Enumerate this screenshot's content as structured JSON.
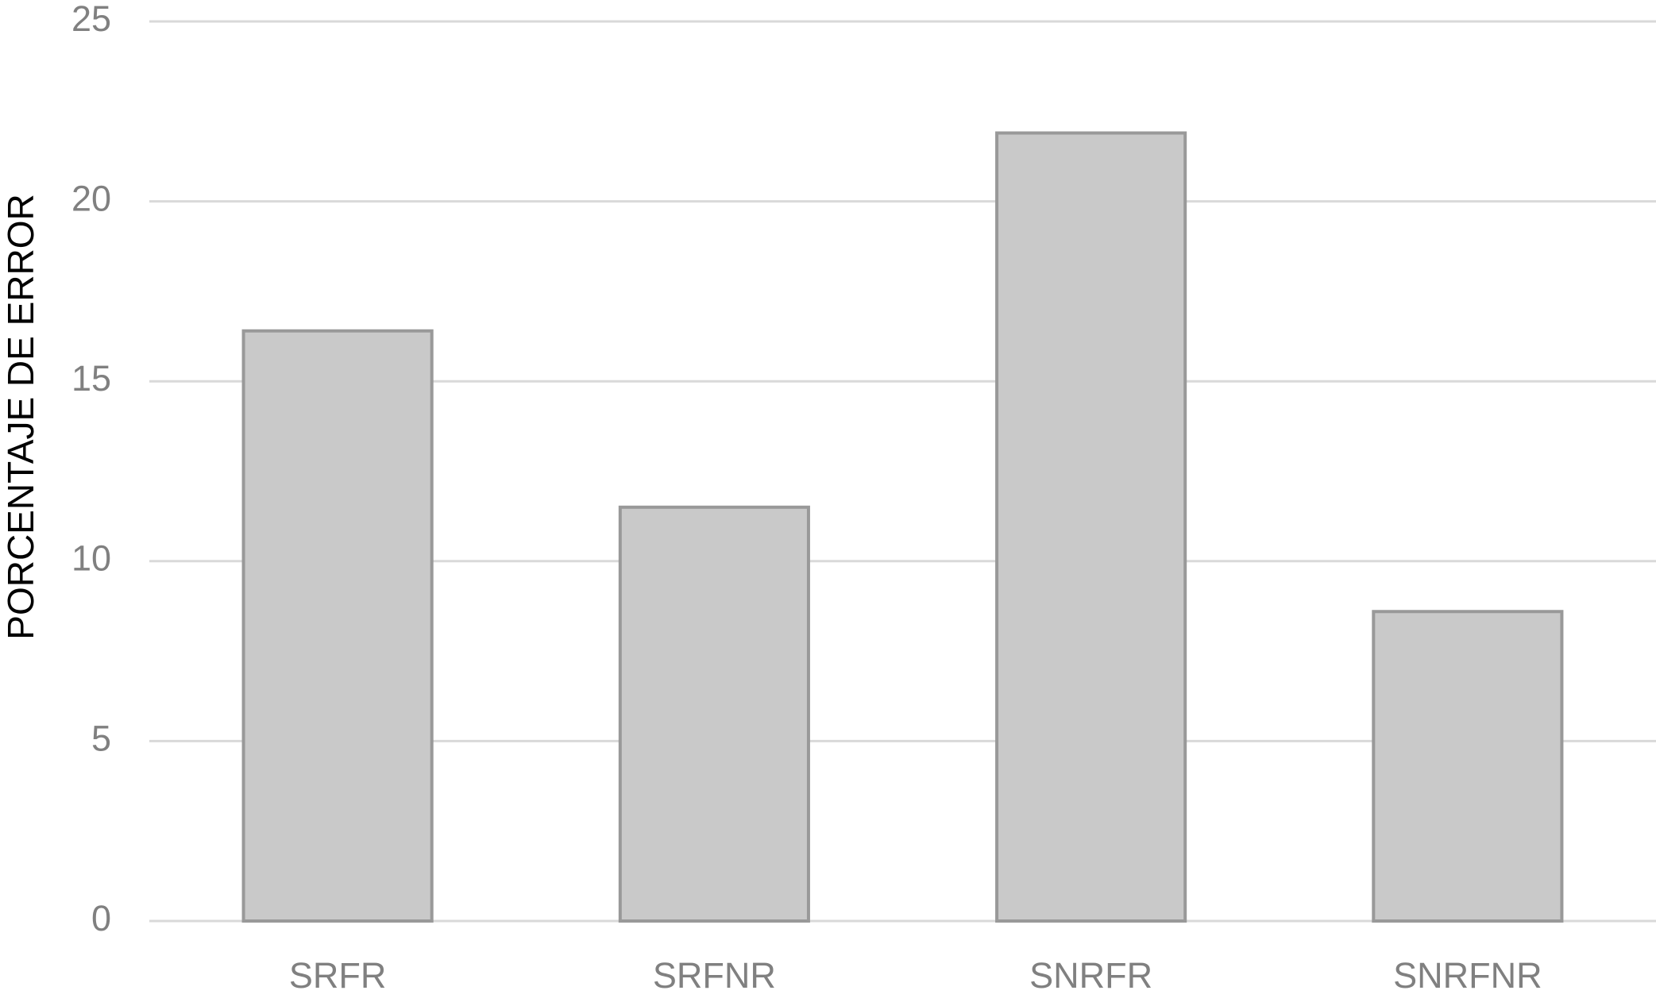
{
  "chart_data": {
    "type": "bar",
    "y_label": "PORCENTAJE DE ERROR",
    "categories": [
      "SRFR",
      "SRFNR",
      "SNRFR",
      "SNRFNR"
    ],
    "values": [
      16.4,
      11.5,
      21.9,
      8.6
    ],
    "color": "#c9c9c9",
    "edge_color": "#999999",
    "ylim": [
      0,
      25
    ],
    "yticks": [
      0,
      5,
      10,
      15,
      20,
      25
    ],
    "grid": true
  }
}
